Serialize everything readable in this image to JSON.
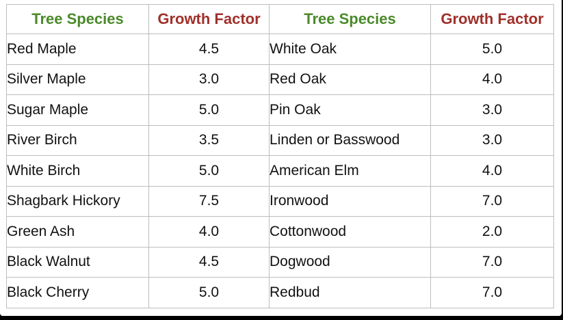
{
  "headers": {
    "species_left": "Tree Species",
    "factor_left": "Growth Factor",
    "species_right": "Tree Species",
    "factor_right": "Growth Factor"
  },
  "rows": [
    {
      "left_species": "Red Maple",
      "left_factor": "4.5",
      "right_species": "White Oak",
      "right_factor": "5.0"
    },
    {
      "left_species": "Silver Maple",
      "left_factor": "3.0",
      "right_species": "Red Oak",
      "right_factor": "4.0"
    },
    {
      "left_species": "Sugar Maple",
      "left_factor": "5.0",
      "right_species": "Pin Oak",
      "right_factor": "3.0"
    },
    {
      "left_species": "River Birch",
      "left_factor": "3.5",
      "right_species": "Linden or Basswood",
      "right_factor": "3.0"
    },
    {
      "left_species": "White Birch",
      "left_factor": "5.0",
      "right_species": "American Elm",
      "right_factor": "4.0"
    },
    {
      "left_species": "Shagbark Hickory",
      "left_factor": "7.5",
      "right_species": "Ironwood",
      "right_factor": "7.0"
    },
    {
      "left_species": "Green Ash",
      "left_factor": "4.0",
      "right_species": "Cottonwood",
      "right_factor": "2.0"
    },
    {
      "left_species": "Black Walnut",
      "left_factor": "4.5",
      "right_species": "Dogwood",
      "right_factor": "7.0"
    },
    {
      "left_species": "Black Cherry",
      "left_factor": "5.0",
      "right_species": "Redbud",
      "right_factor": "7.0"
    }
  ],
  "colors": {
    "species_header": "#4a8a2a",
    "factor_header": "#a0302a",
    "border": "#bdbdbd"
  }
}
